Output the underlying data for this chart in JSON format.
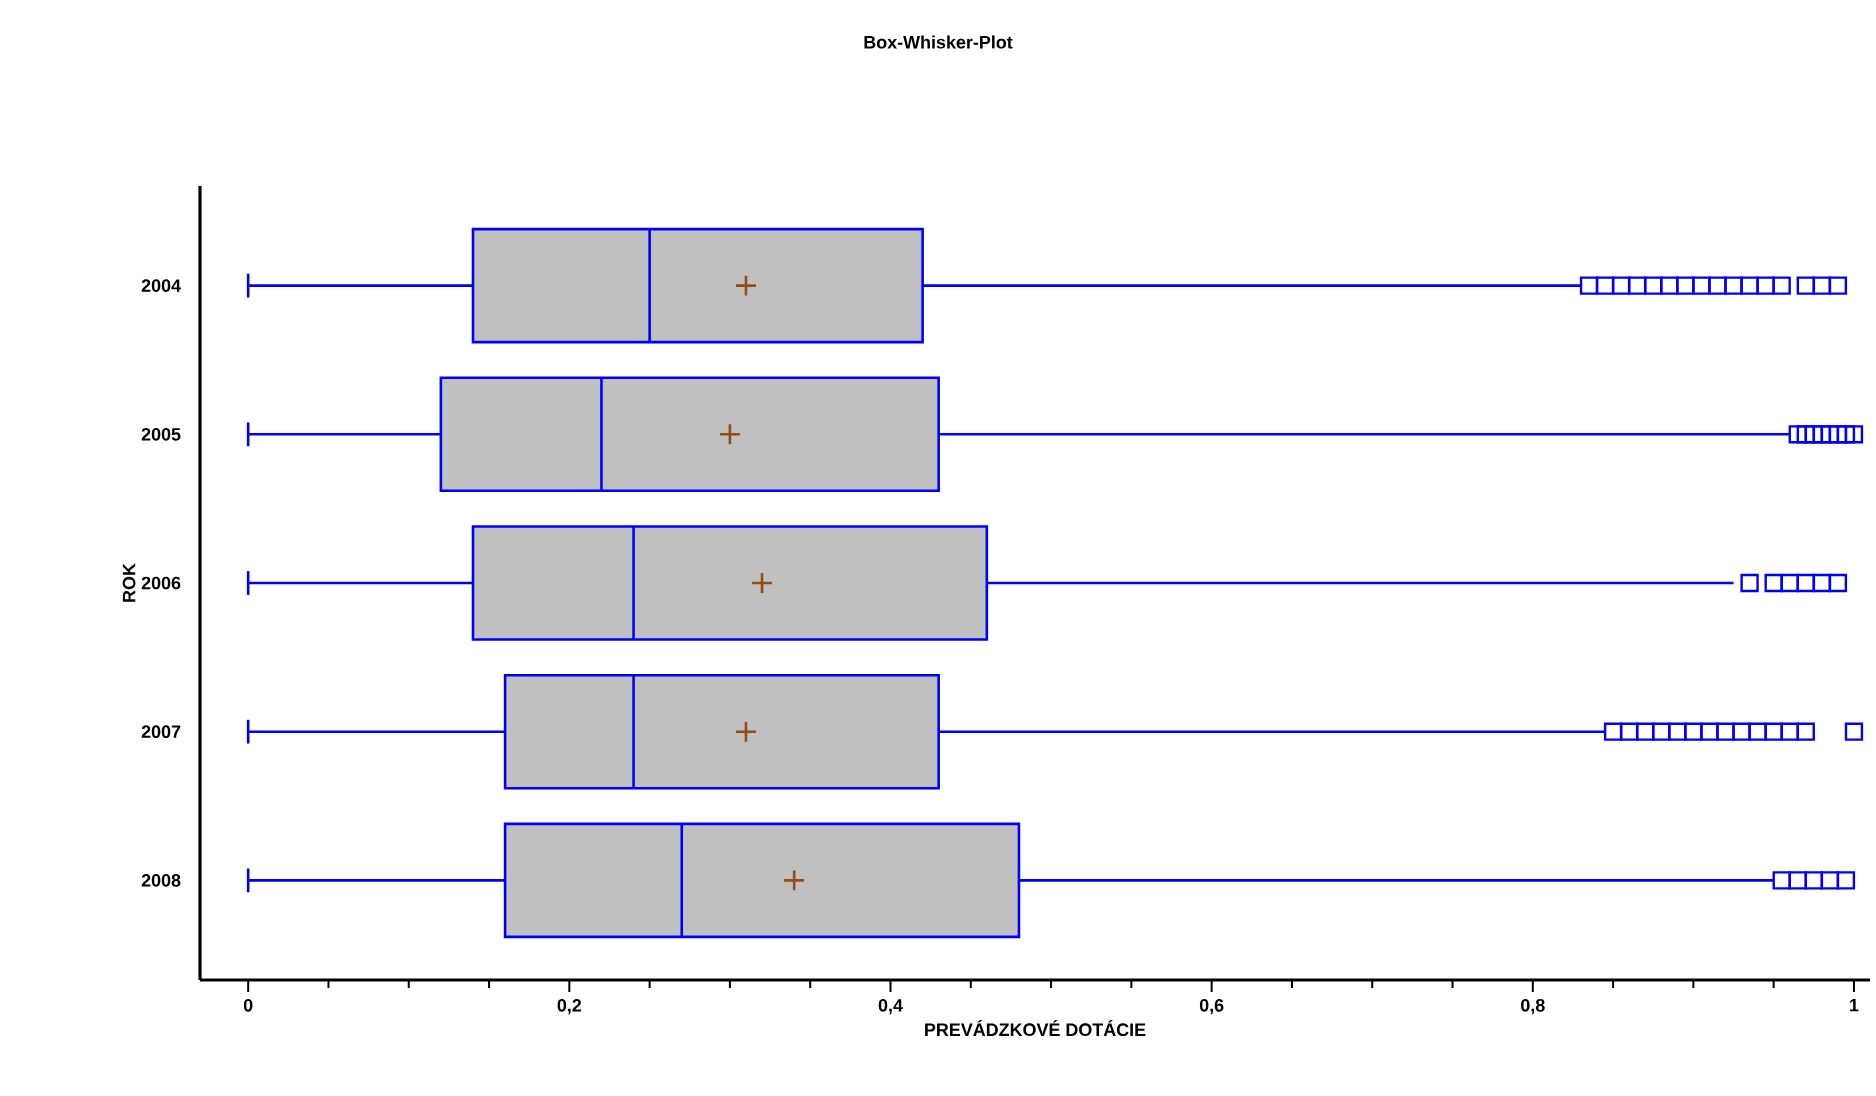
{
  "chart_data": {
    "type": "box",
    "orientation": "horizontal",
    "title": "Box-Whisker-Plot",
    "xlabel": "PREVÁDZKOVÉ DOTÁCIE",
    "ylabel": "ROK",
    "categories": [
      "2004",
      "2005",
      "2006",
      "2007",
      "2008"
    ],
    "xlim": [
      -0.03,
      1.01
    ],
    "xticks": [
      0,
      {
        "value": 0.2,
        "label": "0,2"
      },
      {
        "value": 0.4,
        "label": "0,4"
      },
      {
        "value": 0.6,
        "label": "0,6"
      },
      {
        "value": 0.8,
        "label": "0,8"
      },
      1
    ],
    "grid": false,
    "series": [
      {
        "color": "#0000ff",
        "boxes": [
          {
            "low": 0,
            "q1": 0.14,
            "median": 0.25,
            "q3": 0.42,
            "high": 0.83,
            "mean": 0.31,
            "outliers": [
              0.835,
              0.845,
              0.855,
              0.865,
              0.875,
              0.885,
              0.895,
              0.905,
              0.915,
              0.925,
              0.935,
              0.945,
              0.955,
              0.97,
              0.98,
              0.99
            ]
          },
          {
            "low": 0,
            "q1": 0.12,
            "median": 0.22,
            "q3": 0.43,
            "high": 0.96,
            "mean": 0.3,
            "outliers": [
              0.965,
              0.97,
              0.975,
              0.98,
              0.985,
              0.99,
              0.995,
              1.0
            ]
          },
          {
            "low": 0,
            "q1": 0.14,
            "median": 0.24,
            "q3": 0.46,
            "high": 0.925,
            "mean": 0.32,
            "outliers": [
              0.935,
              0.95,
              0.96,
              0.97,
              0.98,
              0.99
            ]
          },
          {
            "low": 0,
            "q1": 0.16,
            "median": 0.24,
            "q3": 0.43,
            "high": 0.845,
            "mean": 0.31,
            "outliers": [
              0.85,
              0.86,
              0.87,
              0.88,
              0.89,
              0.9,
              0.91,
              0.92,
              0.93,
              0.94,
              0.95,
              0.96,
              0.97,
              1.0
            ]
          },
          {
            "low": 0,
            "q1": 0.16,
            "median": 0.27,
            "q3": 0.48,
            "high": 0.95,
            "mean": 0.34,
            "outliers": [
              0.955,
              0.965,
              0.975,
              0.985,
              0.995
            ]
          }
        ]
      }
    ]
  }
}
